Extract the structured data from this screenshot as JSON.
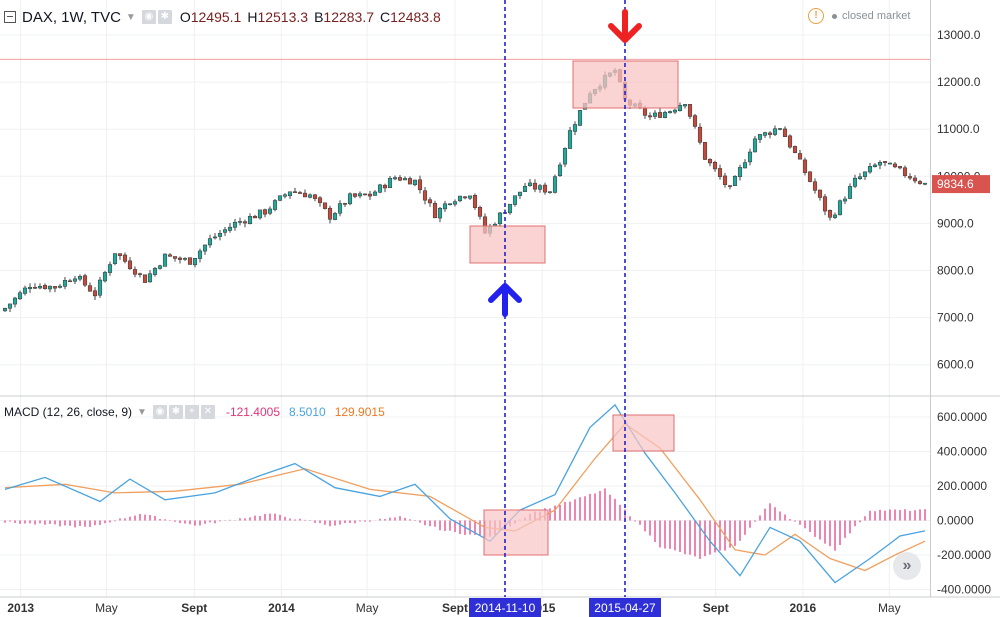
{
  "header": {
    "symbol": "DAX, 1W, TVC",
    "ohlc": [
      {
        "label": "O",
        "value": "12495.1"
      },
      {
        "label": "H",
        "value": "12513.3"
      },
      {
        "label": "B",
        "value": "12283.7"
      },
      {
        "label": "C",
        "value": "12483.8"
      }
    ]
  },
  "market_status": "closed market",
  "price_tag": "9834.6",
  "macd_header": {
    "label": "MACD (12, 26, close, 9)",
    "values": [
      "-121.4005",
      "8.5010",
      "129.9015"
    ]
  },
  "colors": {
    "up": "#26a69a",
    "down": "#c14b3c",
    "macd_line": "#4aa3df",
    "signal_line": "#f0a060",
    "histogram": "#e0347a",
    "arrow_buy": "#2222ee",
    "arrow_sell": "#ee2222",
    "box": "#f8c4c4",
    "price_tag": "#d9534f"
  },
  "chart_data": [
    {
      "type": "candlestick",
      "series": "DAX weekly",
      "ylim": [
        5500,
        13800
      ],
      "y_ticks": [
        "13000.0",
        "12000.0",
        "11000.0",
        "10000.0",
        "9000.0",
        "8000.0",
        "7000.0",
        "6000.0"
      ],
      "x_ticks": [
        "2013",
        "May",
        "Sept",
        "2014",
        "May",
        "Sept",
        "2014-11-10",
        "2015",
        "2015-04-27",
        "Sept",
        "2016",
        "May"
      ],
      "close_path": [
        [
          "2012-12-10",
          7200
        ],
        [
          "2013-01-14",
          7700
        ],
        [
          "2013-02-18",
          7650
        ],
        [
          "2013-03-18",
          7900
        ],
        [
          "2013-04-15",
          7500
        ],
        [
          "2013-05-13",
          8400
        ],
        [
          "2013-06-24",
          7800
        ],
        [
          "2013-07-22",
          8300
        ],
        [
          "2013-08-26",
          8200
        ],
        [
          "2013-09-23",
          8650
        ],
        [
          "2013-10-28",
          9000
        ],
        [
          "2013-12-09",
          9250
        ],
        [
          "2014-01-13",
          9700
        ],
        [
          "2014-02-10",
          9600
        ],
        [
          "2014-03-10",
          9150
        ],
        [
          "2014-04-07",
          9550
        ],
        [
          "2014-05-05",
          9600
        ],
        [
          "2014-06-09",
          9980
        ],
        [
          "2014-07-07",
          9900
        ],
        [
          "2014-08-04",
          9200
        ],
        [
          "2014-08-25",
          9500
        ],
        [
          "2014-09-22",
          9650
        ],
        [
          "2014-10-13",
          8800
        ],
        [
          "2014-11-10",
          9300
        ],
        [
          "2014-12-08",
          9800
        ],
        [
          "2015-01-12",
          9700
        ],
        [
          "2015-02-09",
          10950
        ],
        [
          "2015-03-09",
          11800
        ],
        [
          "2015-04-13",
          12250
        ],
        [
          "2015-04-27",
          11600
        ],
        [
          "2015-06-01",
          11250
        ],
        [
          "2015-06-29",
          11400
        ],
        [
          "2015-07-20",
          11600
        ],
        [
          "2015-08-17",
          10400
        ],
        [
          "2015-09-21",
          9700
        ],
        [
          "2015-10-26",
          10800
        ],
        [
          "2015-11-30",
          11050
        ],
        [
          "2016-01-11",
          9900
        ],
        [
          "2016-02-08",
          9100
        ],
        [
          "2016-03-14",
          9900
        ],
        [
          "2016-04-18",
          10300
        ],
        [
          "2016-05-30",
          10000
        ],
        [
          "2016-06-20",
          9834.6
        ]
      ],
      "last_price": 9834.6,
      "reference_line": 12483.8,
      "annotations": [
        "buy arrow at 2014-11-10",
        "sell arrow at 2015-04-27"
      ]
    },
    {
      "type": "line",
      "title": "MACD (12, 26, close, 9)",
      "ylim": [
        -420,
        680
      ],
      "y_ticks": [
        "600.0000",
        "400.0000",
        "200.0000",
        "0.0000",
        "-200.0000",
        "-400.0000"
      ],
      "series": [
        {
          "name": "MACD",
          "points": [
            [
              "2012-12-10",
              180
            ],
            [
              "2013-02-04",
              250
            ],
            [
              "2013-04-22",
              110
            ],
            [
              "2013-06-03",
              240
            ],
            [
              "2013-07-22",
              120
            ],
            [
              "2013-09-30",
              160
            ],
            [
              "2013-12-02",
              260
            ],
            [
              "2014-01-20",
              330
            ],
            [
              "2014-03-17",
              190
            ],
            [
              "2014-05-19",
              140
            ],
            [
              "2014-07-07",
              210
            ],
            [
              "2014-08-25",
              10
            ],
            [
              "2014-10-20",
              -120
            ],
            [
              "2014-12-01",
              60
            ],
            [
              "2015-01-19",
              150
            ],
            [
              "2015-03-09",
              540
            ],
            [
              "2015-04-13",
              670
            ],
            [
              "2015-05-25",
              390
            ],
            [
              "2015-07-06",
              160
            ],
            [
              "2015-08-24",
              -120
            ],
            [
              "2015-10-05",
              -320
            ],
            [
              "2015-11-16",
              -40
            ],
            [
              "2015-12-28",
              -120
            ],
            [
              "2016-02-15",
              -360
            ],
            [
              "2016-04-04",
              -220
            ],
            [
              "2016-05-16",
              -90
            ],
            [
              "2016-06-20",
              -60
            ]
          ]
        },
        {
          "name": "Signal",
          "points": [
            [
              "2012-12-10",
              190
            ],
            [
              "2013-03-04",
              210
            ],
            [
              "2013-05-13",
              160
            ],
            [
              "2013-08-05",
              170
            ],
            [
              "2013-11-04",
              210
            ],
            [
              "2014-02-03",
              300
            ],
            [
              "2014-05-05",
              180
            ],
            [
              "2014-07-28",
              140
            ],
            [
              "2014-10-13",
              -40
            ],
            [
              "2014-11-24",
              -60
            ],
            [
              "2015-01-19",
              60
            ],
            [
              "2015-03-16",
              360
            ],
            [
              "2015-04-27",
              560
            ],
            [
              "2015-06-15",
              420
            ],
            [
              "2015-08-10",
              120
            ],
            [
              "2015-09-28",
              -170
            ],
            [
              "2015-11-09",
              -200
            ],
            [
              "2015-12-21",
              -80
            ],
            [
              "2016-02-08",
              -220
            ],
            [
              "2016-03-28",
              -290
            ],
            [
              "2016-05-09",
              -200
            ],
            [
              "2016-06-20",
              -120
            ]
          ]
        },
        {
          "name": "Histogram",
          "type": "bar",
          "points": [
            [
              "2012-12-10",
              -10
            ],
            [
              "2013-04-08",
              -40
            ],
            [
              "2013-06-17",
              40
            ],
            [
              "2013-09-02",
              -30
            ],
            [
              "2013-12-16",
              40
            ],
            [
              "2014-03-10",
              -30
            ],
            [
              "2014-06-16",
              20
            ],
            [
              "2014-08-18",
              -60
            ],
            [
              "2014-10-20",
              -100
            ],
            [
              "2014-12-15",
              40
            ],
            [
              "2015-02-16",
              120
            ],
            [
              "2015-03-30",
              180
            ],
            [
              "2015-05-04",
              30
            ],
            [
              "2015-06-15",
              -150
            ],
            [
              "2015-08-10",
              -220
            ],
            [
              "2015-09-28",
              -150
            ],
            [
              "2015-11-16",
              100
            ],
            [
              "2016-01-04",
              -50
            ],
            [
              "2016-02-15",
              -170
            ],
            [
              "2016-04-04",
              60
            ],
            [
              "2016-06-20",
              60
            ]
          ]
        }
      ]
    }
  ]
}
